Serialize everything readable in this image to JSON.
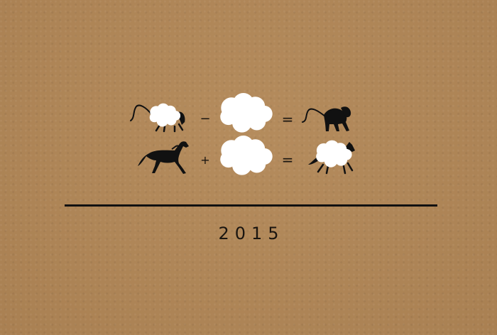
{
  "equations": [
    {
      "left": "sheep-with-monkey-tail",
      "operator": "−",
      "middle": "cloud",
      "equals": "=",
      "result": "monkey"
    },
    {
      "left": "horse",
      "operator": "+",
      "middle": "cloud",
      "equals": "=",
      "result": "sheep-like-horse"
    }
  ],
  "year": "2015",
  "colors": {
    "background": "#b08758",
    "ink": "#111111",
    "cloud": "#ffffff"
  }
}
